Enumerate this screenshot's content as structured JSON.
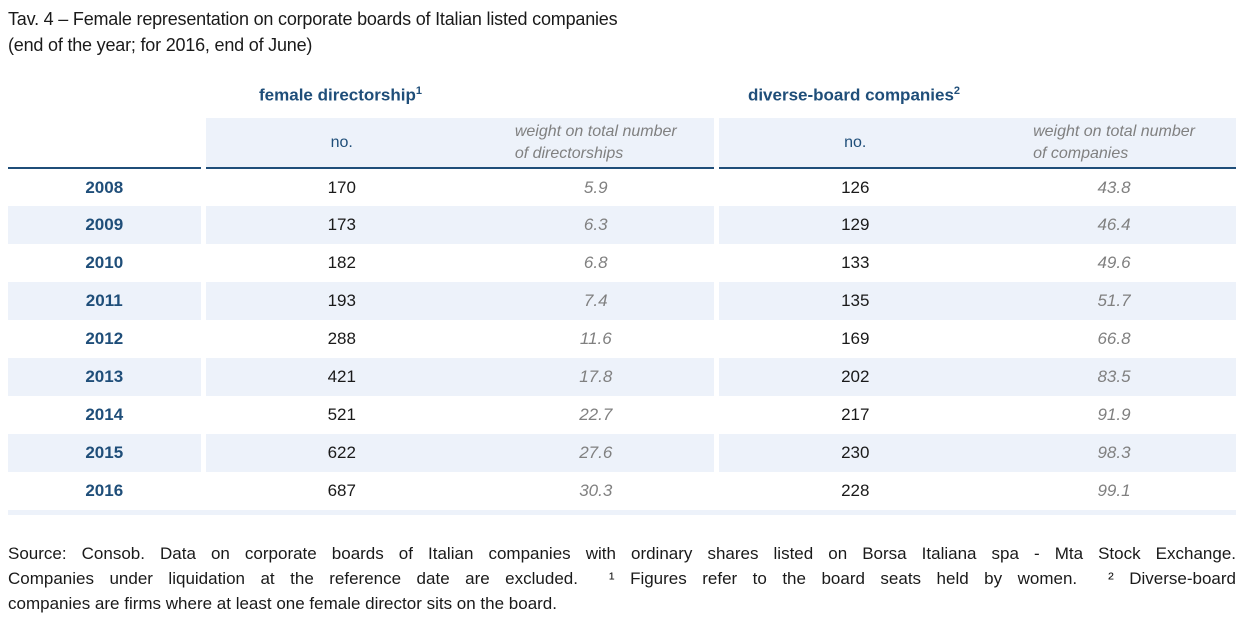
{
  "colors": {
    "accent": "#1F4E79",
    "stripe": "#EDF2FA",
    "gray": "#808080",
    "text": "#1A1A1A",
    "rule": "#1F4E79"
  },
  "title": {
    "line1": "Tav. 4 – Female representation on corporate boards of Italian listed companies",
    "line2": "(end of the year; for 2016, end of June)"
  },
  "table": {
    "group1": {
      "label": "female directorship",
      "sup": "1"
    },
    "group2": {
      "label": "diverse-board companies",
      "sup": "2"
    },
    "subheader": {
      "no1": "no.",
      "weight1_line1": "weight on total number",
      "weight1_line2": "of directorships",
      "no2": "no.",
      "weight2_line1": "weight on total number",
      "weight2_line2": "of companies"
    },
    "rows": [
      {
        "year": "2008",
        "fd_no": "170",
        "fd_weight": "5.9",
        "db_no": "126",
        "db_weight": "43.8"
      },
      {
        "year": "2009",
        "fd_no": "173",
        "fd_weight": "6.3",
        "db_no": "129",
        "db_weight": "46.4"
      },
      {
        "year": "2010",
        "fd_no": "182",
        "fd_weight": "6.8",
        "db_no": "133",
        "db_weight": "49.6"
      },
      {
        "year": "2011",
        "fd_no": "193",
        "fd_weight": "7.4",
        "db_no": "135",
        "db_weight": "51.7"
      },
      {
        "year": "2012",
        "fd_no": "288",
        "fd_weight": "11.6",
        "db_no": "169",
        "db_weight": "66.8"
      },
      {
        "year": "2013",
        "fd_no": "421",
        "fd_weight": "17.8",
        "db_no": "202",
        "db_weight": "83.5"
      },
      {
        "year": "2014",
        "fd_no": "521",
        "fd_weight": "22.7",
        "db_no": "217",
        "db_weight": "91.9"
      },
      {
        "year": "2015",
        "fd_no": "622",
        "fd_weight": "27.6",
        "db_no": "230",
        "db_weight": "98.3"
      },
      {
        "year": "2016",
        "fd_no": "687",
        "fd_weight": "30.3",
        "db_no": "228",
        "db_weight": "99.1"
      }
    ]
  },
  "footnote": {
    "line1": "Source: Consob. Data on corporate boards of Italian companies with ordinary shares listed on Borsa Italiana spa - Mta Stock Exchange.",
    "line2": "Companies under liquidation at the reference date are excluded.  ¹ Figures refer to the board seats held by women.  ² Diverse-board",
    "line3": "companies are firms where at least one female director sits on the board."
  }
}
